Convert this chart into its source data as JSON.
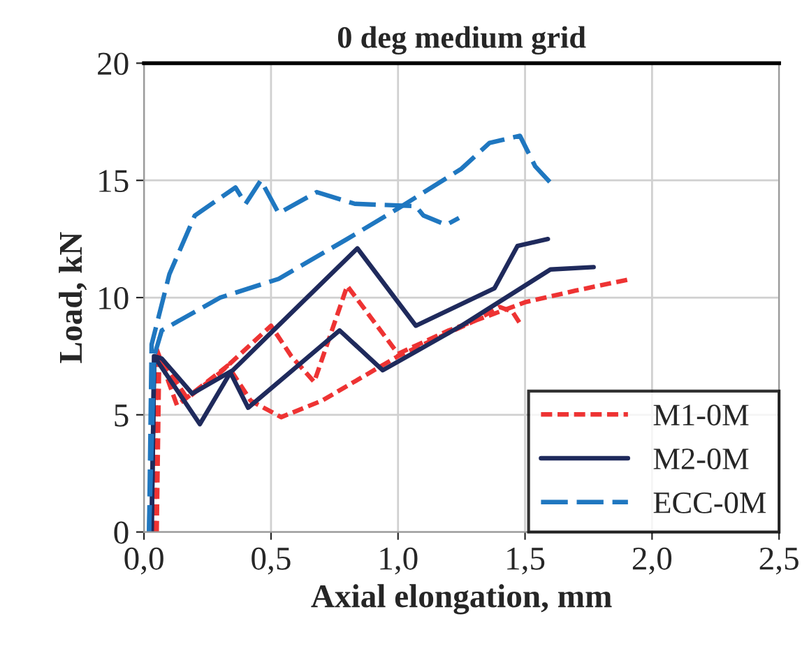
{
  "chart_data": {
    "type": "line",
    "title": "0 deg medium grid",
    "xlabel": "Axial elongation, mm",
    "ylabel": "Load, kN",
    "xlim": [
      0,
      2.5
    ],
    "xticks": [
      {
        "value": 0,
        "label": "0,0"
      },
      {
        "value": 0.5,
        "label": "0,5"
      },
      {
        "value": 1,
        "label": "1,0"
      },
      {
        "value": 1.5,
        "label": "1,5"
      },
      {
        "value": 2,
        "label": "2,0"
      },
      {
        "value": 2.5,
        "label": "2,5"
      }
    ],
    "ylim": [
      0,
      20
    ],
    "yticks": [
      0,
      5,
      10,
      15,
      20
    ],
    "grid": true,
    "legend": "bottom right",
    "marker": "none",
    "series": [
      {
        "name": "M1-0M",
        "color": "#ee3333",
        "line_style": "dotted",
        "x": [
          0.04,
          0.05,
          0.13,
          0.33,
          0.42,
          0.54,
          0.7,
          1.0,
          1.2,
          1.3,
          1.4,
          1.45,
          1.48
        ],
        "values": [
          0,
          7.8,
          5.4,
          7.1,
          5.6,
          4.9,
          5.6,
          7.5,
          8.5,
          9.0,
          9.6,
          9.4,
          8.9
        ]
      },
      {
        "color": "#ee3333",
        "line_style": "dotted",
        "x": [
          0.05,
          0.06,
          0.17,
          0.3,
          0.5,
          0.58,
          0.67,
          0.8,
          1.0,
          1.2,
          1.5,
          1.7,
          1.92
        ],
        "values": [
          0,
          7.5,
          5.7,
          6.8,
          8.8,
          7.5,
          6.4,
          10.5,
          7.6,
          8.6,
          9.8,
          10.3,
          10.8
        ]
      },
      {
        "name": "M2-0M",
        "color": "#1f2a5c",
        "line_style": "solid",
        "x": [
          0.03,
          0.04,
          0.07,
          0.19,
          0.35,
          0.5,
          0.84,
          1.07,
          1.38,
          1.47,
          1.59
        ],
        "values": [
          0,
          7.5,
          7.4,
          5.9,
          6.9,
          8.5,
          12.1,
          8.8,
          10.4,
          12.2,
          12.5
        ]
      },
      {
        "color": "#1f2a5c",
        "line_style": "solid",
        "x": [
          0.03,
          0.04,
          0.22,
          0.34,
          0.41,
          0.77,
          0.94,
          1.25,
          1.6,
          1.77
        ],
        "values": [
          0,
          7.5,
          4.6,
          6.8,
          5.3,
          8.6,
          6.9,
          8.8,
          11.2,
          11.3
        ]
      },
      {
        "name": "ECC-0M",
        "color": "#1f77c0",
        "line_style": "dashed",
        "x": [
          0.02,
          0.03,
          0.1,
          0.2,
          0.36,
          0.4,
          0.46,
          0.53,
          0.68,
          0.83,
          1.07,
          1.1,
          1.19,
          1.24
        ],
        "values": [
          0,
          8.0,
          11.0,
          13.5,
          14.7,
          14.0,
          15.0,
          13.6,
          14.5,
          14.0,
          13.9,
          13.5,
          13.1,
          13.4
        ]
      },
      {
        "color": "#1f77c0",
        "line_style": "dashed",
        "x": [
          0.02,
          0.04,
          0.07,
          0.3,
          0.53,
          0.8,
          1.0,
          1.25,
          1.36,
          1.48,
          1.54,
          1.6
        ],
        "values": [
          0,
          7.5,
          8.6,
          10.0,
          10.8,
          12.5,
          13.8,
          15.5,
          16.6,
          16.9,
          15.6,
          14.9
        ]
      }
    ]
  }
}
